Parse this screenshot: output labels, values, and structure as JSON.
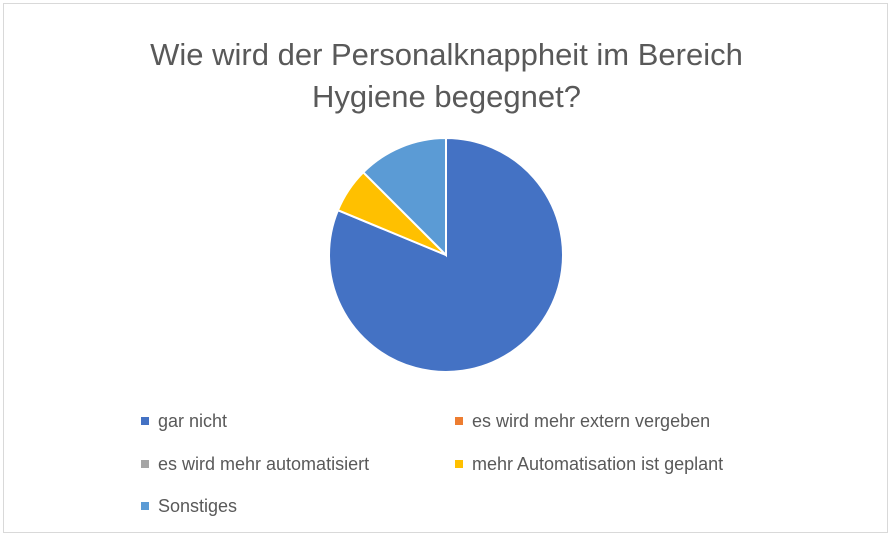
{
  "chart_data": {
    "type": "pie",
    "title": "Wie wird der Personalknappheit im Bereich Hygiene begegnet?",
    "title_lines": [
      "Wie wird der Personalknappheit im Bereich",
      "Hygiene begegnet?"
    ],
    "legend_position": "bottom",
    "series": [
      {
        "name": "gar nicht",
        "value": 81.25,
        "color": "#4472C4"
      },
      {
        "name": "es wird mehr extern vergeben",
        "value": 0,
        "color": "#ED7D31"
      },
      {
        "name": "es wird mehr automatisiert",
        "value": 0,
        "color": "#A5A5A5"
      },
      {
        "name": "mehr Automatisation ist geplant",
        "value": 6.25,
        "color": "#FFC000"
      },
      {
        "name": "Sonstiges",
        "value": 12.5,
        "color": "#5B9BD5"
      }
    ]
  }
}
